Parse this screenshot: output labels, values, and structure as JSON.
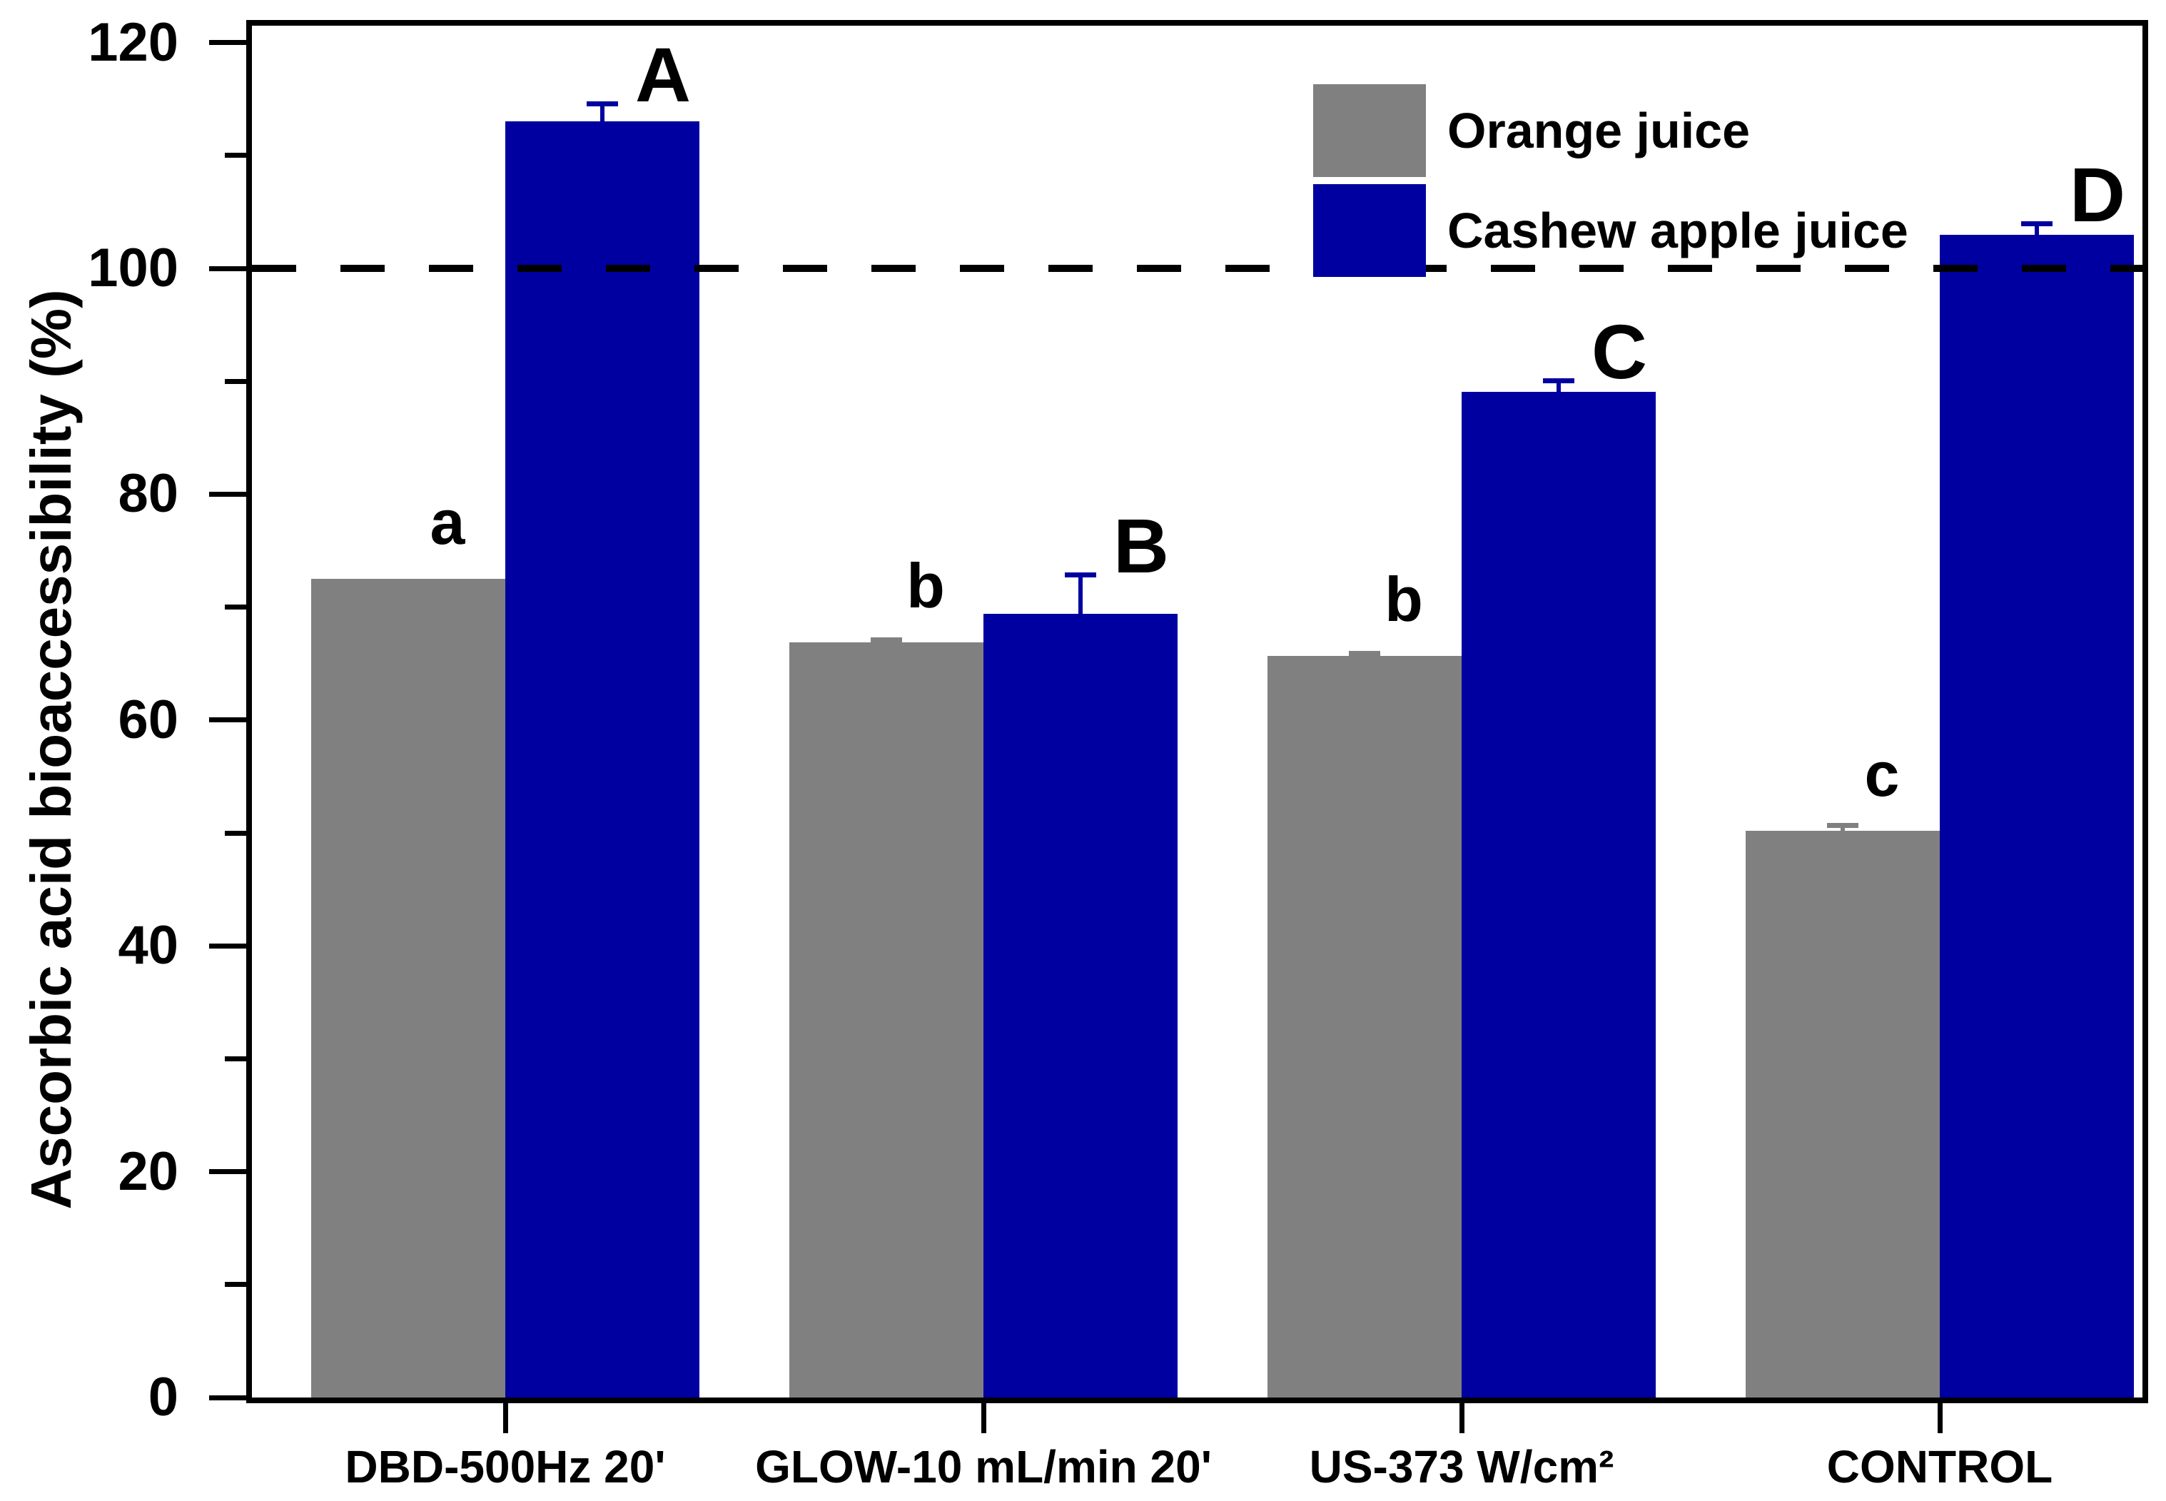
{
  "chart_data": {
    "type": "bar",
    "title": "",
    "xlabel": "",
    "ylabel": "Ascorbic acid bioaccessibility (%)",
    "ylim": [
      0,
      120
    ],
    "y_major_ticks": [
      0,
      20,
      40,
      60,
      80,
      100,
      120
    ],
    "y_minor_ticks": [
      10,
      30,
      50,
      70,
      90,
      110
    ],
    "grid": false,
    "legend_position": "top-right-inside",
    "reference_line": {
      "value": 100,
      "style": "dashed",
      "color": "#000000"
    },
    "categories": [
      "DBD-500Hz 20'",
      "GLOW-10 mL/min 20'",
      "US-373 W/cm²",
      "CONTROL"
    ],
    "series": [
      {
        "name": "Orange juice",
        "color": "#808080",
        "values": [
          72.5,
          66.9,
          65.7,
          50.2
        ],
        "errors_plus": [
          0,
          0.4,
          0.4,
          0.7
        ],
        "sig_labels": [
          "a",
          "b",
          "b",
          "c"
        ]
      },
      {
        "name": "Cashew apple juice",
        "color": "#0000A0",
        "values": [
          113.0,
          69.4,
          89.1,
          103.0
        ],
        "errors_plus": [
          1.8,
          3.7,
          1.2,
          1.2
        ],
        "sig_labels": [
          "A",
          "B",
          "C",
          "D"
        ]
      }
    ],
    "axis_color": "#000000"
  }
}
